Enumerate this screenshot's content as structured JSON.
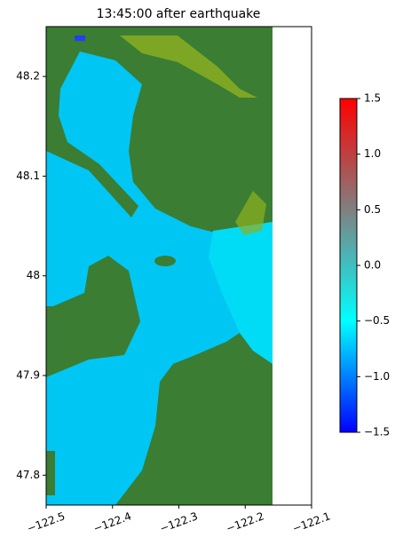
{
  "chart_data": {
    "type": "image",
    "title": "13:45:00 after earthquake",
    "xlim": [
      -122.5,
      -122.1
    ],
    "xticks": [
      {
        "value": -122.5,
        "label": "−122.5"
      },
      {
        "value": -122.4,
        "label": "−122.4"
      },
      {
        "value": -122.3,
        "label": "−122.3"
      },
      {
        "value": -122.2,
        "label": "−122.2"
      },
      {
        "value": -122.1,
        "label": "−122.1"
      }
    ],
    "ylim": [
      47.77,
      48.25
    ],
    "yticks": [
      47.8,
      47.9,
      48.0,
      48.1,
      48.2
    ],
    "colorbar": {
      "clim": [
        -1.5,
        1.5
      ],
      "ticks": [
        {
          "value": -1.5,
          "label": "−1.5"
        },
        {
          "value": -1.0,
          "label": "−1.0"
        },
        {
          "value": -0.5,
          "label": "−0.5"
        },
        {
          "value": 0.0,
          "label": "0.0"
        },
        {
          "value": 0.5,
          "label": "0.5"
        },
        {
          "value": 1.0,
          "label": "1.0"
        },
        {
          "value": 1.5,
          "label": "1.5"
        }
      ],
      "colors": [
        "#0000ff",
        "#00ffff",
        "#808080",
        "#ff0000"
      ]
    }
  }
}
